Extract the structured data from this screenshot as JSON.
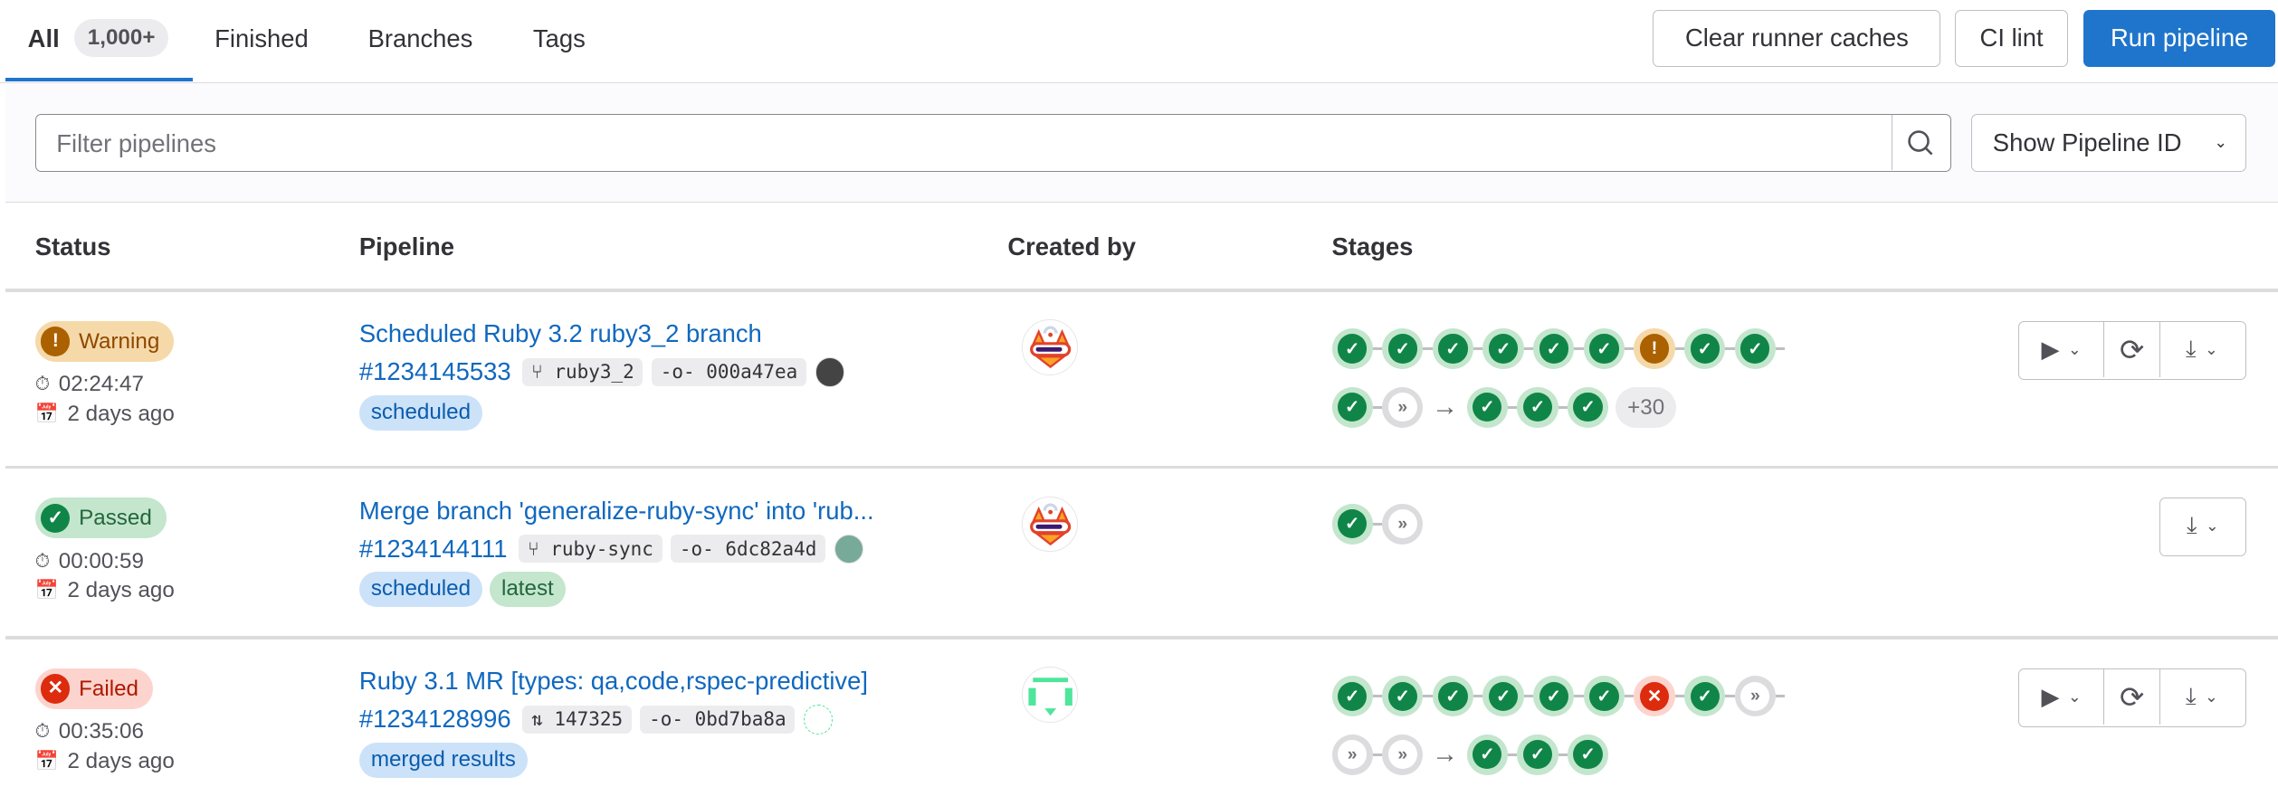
{
  "tabs": [
    {
      "label": "All",
      "count": "1,000+",
      "active": true
    },
    {
      "label": "Finished"
    },
    {
      "label": "Branches"
    },
    {
      "label": "Tags"
    }
  ],
  "toolbar": {
    "clear_caches": "Clear runner caches",
    "ci_lint": "CI lint",
    "run_pipeline": "Run pipeline"
  },
  "filter": {
    "placeholder": "Filter pipelines",
    "dropdown": "Show Pipeline ID"
  },
  "columns": [
    "Status",
    "Pipeline",
    "Created by",
    "Stages"
  ],
  "colors": {
    "primary": "#1f75cb",
    "link": "#1068bf",
    "success": "#108548",
    "warning": "#ab6100",
    "failed": "#dd2b0e"
  },
  "rows": [
    {
      "status": "Warning",
      "duration": "02:24:47",
      "finished": "2 days ago",
      "title": "Scheduled Ruby 3.2 ruby3_2 branch",
      "id": "#1234145533",
      "ref_type": "branch-icon",
      "ref": "ruby3_2",
      "sha": "000a47ea",
      "tags": [
        "scheduled"
      ],
      "stages": [
        [
          "success",
          "success",
          "success",
          "success",
          "success",
          "success",
          "warning",
          "success",
          "success"
        ],
        [
          "success",
          "skipped",
          "|arrow",
          "success",
          "success",
          "success"
        ]
      ],
      "more": "+30",
      "actions": [
        "play",
        "retry",
        "download"
      ]
    },
    {
      "status": "Passed",
      "duration": "00:00:59",
      "finished": "2 days ago",
      "title": "Merge branch 'generalize-ruby-sync' into 'rub...",
      "id": "#1234144111",
      "ref_type": "branch-icon",
      "ref": "ruby-sync",
      "sha": "6dc82a4d",
      "tags": [
        "scheduled",
        "latest"
      ],
      "stages": [
        [
          "success",
          "skipped"
        ]
      ],
      "actions": [
        "download"
      ]
    },
    {
      "status": "Failed",
      "duration": "00:35:06",
      "finished": "2 days ago",
      "title": "Ruby 3.1 MR [types: qa,code,rspec-predictive]",
      "id": "#1234128996",
      "ref_type": "merge-request-icon",
      "ref": "147325",
      "sha": "0bd7ba8a",
      "tags": [
        "merged results"
      ],
      "stages": [
        [
          "success",
          "success",
          "success",
          "success",
          "success",
          "success",
          "failed",
          "success",
          "skipped"
        ],
        [
          "skipped",
          "skipped",
          "|arrow",
          "success",
          "success",
          "success"
        ]
      ],
      "actions": [
        "play",
        "retry",
        "download"
      ]
    }
  ]
}
